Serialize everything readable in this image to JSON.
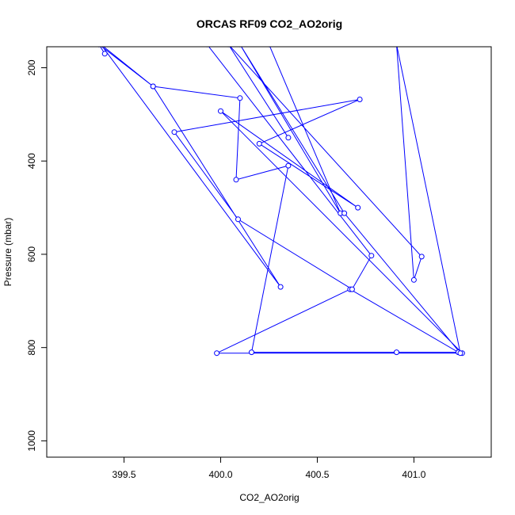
{
  "chart_data": {
    "type": "line",
    "title": "ORCAS RF09 CO2_AO2orig",
    "xlabel": "CO2_AO2orig",
    "ylabel": "Pressure (mbar)",
    "xlim": [
      399.1,
      401.4
    ],
    "ylim": [
      1035,
      155
    ],
    "y_reversed": true,
    "xticks": [
      399.5,
      400.0,
      400.5,
      401.0
    ],
    "xtick_labels": [
      "399.5",
      "400.0",
      "400.5",
      "401.0"
    ],
    "yticks": [
      200,
      400,
      600,
      800,
      1000
    ],
    "ytick_labels": [
      "200",
      "400",
      "600",
      "800",
      "1000"
    ],
    "grid": false,
    "legend": "none",
    "marker": "open-circle",
    "color": "#0000ff",
    "series": [
      {
        "x": [
          399.37,
          399.4,
          399.37,
          399.65,
          399.38,
          400.31,
          399.65,
          400.1,
          400.08,
          400.35,
          400.16,
          400.91,
          401.23,
          400.67,
          399.98,
          401.25,
          400.0,
          400.71,
          400.2,
          400.72,
          399.76,
          400.09,
          400.68,
          400.78,
          399.93,
          400.25,
          400.62,
          400.1,
          400.64,
          401.24,
          400.91,
          401.0,
          401.04,
          400.04,
          400.35
        ],
        "y": [
          150,
          170,
          150,
          240,
          150,
          670,
          240,
          265,
          440,
          410,
          810,
          810,
          810,
          675,
          812,
          812,
          293,
          500,
          363,
          268,
          338,
          525,
          675,
          603,
          150,
          150,
          512,
          150,
          512,
          812,
          150,
          655,
          605,
          150,
          350
        ]
      }
    ]
  }
}
